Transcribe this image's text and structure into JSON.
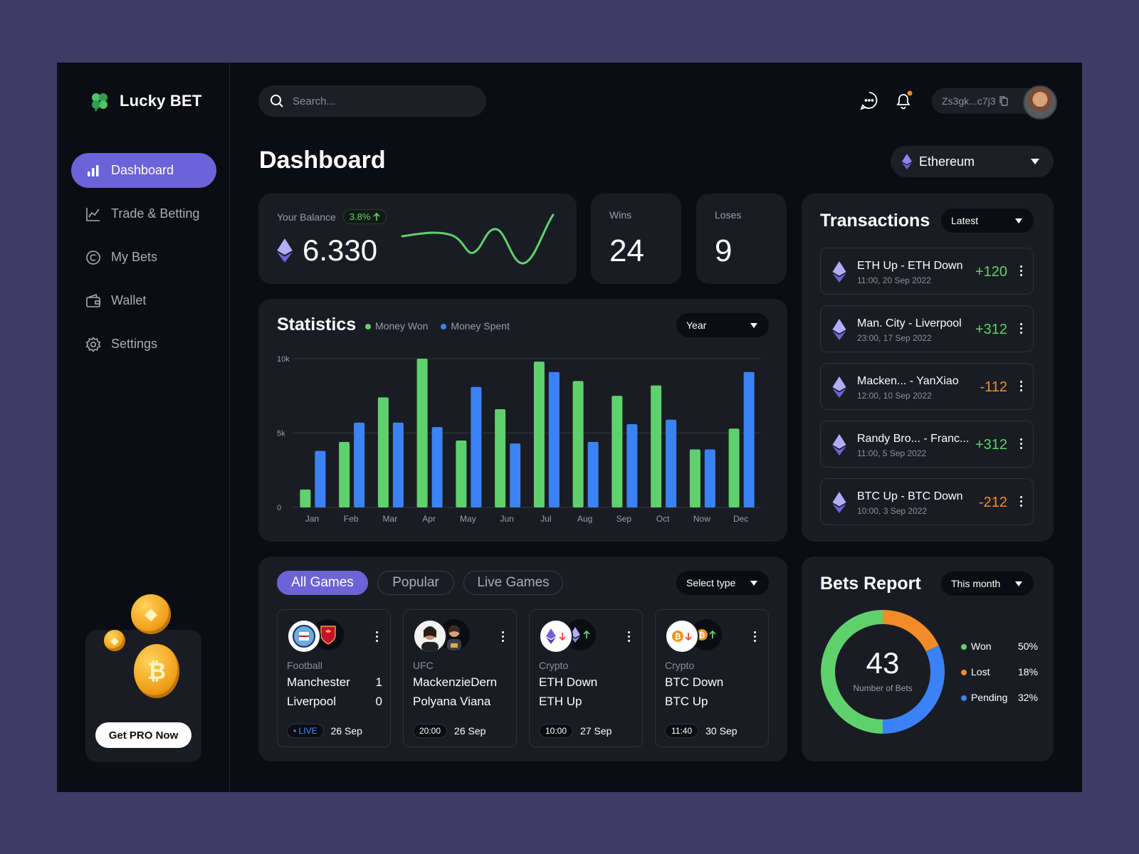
{
  "app": {
    "name": "Lucky BET"
  },
  "sidebar": {
    "items": [
      {
        "label": "Dashboard",
        "icon": "bar-chart-icon",
        "active": true
      },
      {
        "label": "Trade & Betting",
        "icon": "line-chart-icon",
        "active": false
      },
      {
        "label": "My Bets",
        "icon": "coin-icon",
        "active": false
      },
      {
        "label": "Wallet",
        "icon": "wallet-icon",
        "active": false
      },
      {
        "label": "Settings",
        "icon": "gear-icon",
        "active": false
      }
    ],
    "promo": {
      "button_label": "Get PRO Now"
    }
  },
  "header": {
    "search_placeholder": "Search...",
    "wallet_address": "Zs3gk...c7j3",
    "notification_dot": true
  },
  "page": {
    "title": "Dashboard",
    "currency": "Ethereum"
  },
  "balance": {
    "label": "Your Balance",
    "change": "3.8%",
    "value": "6.330"
  },
  "wins": {
    "label": "Wins",
    "value": "24"
  },
  "loses": {
    "label": "Loses",
    "value": "9"
  },
  "statistics": {
    "title": "Statistics",
    "period": "Year",
    "legend": {
      "won": "Money Won",
      "spent": "Money Spent"
    }
  },
  "chart_data": {
    "type": "bar",
    "categories": [
      "Jan",
      "Feb",
      "Mar",
      "Apr",
      "May",
      "Jun",
      "Jul",
      "Aug",
      "Sep",
      "Oct",
      "Now",
      "Dec"
    ],
    "series": [
      {
        "name": "Money Won",
        "color": "#5fd16c",
        "values": [
          1200,
          4400,
          7400,
          10000,
          4500,
          6600,
          9800,
          8500,
          7500,
          8200,
          3900,
          5300
        ]
      },
      {
        "name": "Money Spent",
        "color": "#3b82f6",
        "values": [
          3800,
          5700,
          5700,
          5400,
          8100,
          4300,
          9100,
          4400,
          5600,
          5900,
          3900,
          9100
        ]
      }
    ],
    "ytick_labels": [
      "0",
      "5k",
      "10k"
    ],
    "ylim": [
      0,
      10000
    ],
    "grid": true
  },
  "transactions": {
    "title": "Transactions",
    "filter": "Latest",
    "items": [
      {
        "title": "ETH Up - ETH Down",
        "time": "11:00, 20 Sep 2022",
        "amount": "+120",
        "positive": true
      },
      {
        "title": "Man. City - Liverpool",
        "time": "23:00, 17 Sep 2022",
        "amount": "+312",
        "positive": true
      },
      {
        "title": "Macken... -  YanXiao",
        "time": "12:00, 10 Sep 2022",
        "amount": "-112",
        "positive": false
      },
      {
        "title": "Randy Bro... - Franc...",
        "time": "11:00, 5 Sep 2022",
        "amount": "+312",
        "positive": true
      },
      {
        "title": "BTC Up - BTC Down",
        "time": "10:00, 3 Sep 2022",
        "amount": "-212",
        "positive": false
      }
    ]
  },
  "games": {
    "tabs": [
      "All Games",
      "Popular",
      "Live Games"
    ],
    "select_type": "Select type",
    "cards": [
      {
        "category": "Football",
        "line1": "Manchester",
        "score1": "1",
        "line2": "Liverpool",
        "score2": "0",
        "badge": "• LIVE",
        "date": "26 Sep"
      },
      {
        "category": "UFC",
        "line1": "MackenzieDern",
        "score1": "",
        "line2": "Polyana Viana",
        "score2": "",
        "badge": "20:00",
        "date": "26 Sep"
      },
      {
        "category": "Crypto",
        "line1": "ETH Down",
        "score1": "",
        "line2": "ETH Up",
        "score2": "",
        "badge": "10:00",
        "date": "27 Sep"
      },
      {
        "category": "Crypto",
        "line1": "BTC Down",
        "score1": "",
        "line2": "BTC Up",
        "score2": "",
        "badge": "11:40",
        "date": "30 Sep"
      }
    ]
  },
  "bets_report": {
    "title": "Bets Report",
    "period": "This month",
    "total": "43",
    "total_label": "Number of Bets",
    "segments": [
      {
        "label": "Won",
        "percent": "50%",
        "value": 50,
        "color": "#5fd16c"
      },
      {
        "label": "Lost",
        "percent": "18%",
        "value": 18,
        "color": "#f28c28"
      },
      {
        "label": "Pending",
        "percent": "32%",
        "value": 32,
        "color": "#3b82f6"
      }
    ]
  },
  "colors": {
    "accent": "#6c63d8",
    "positive": "#5fd16c",
    "negative": "#f28c28",
    "blue": "#3b82f6"
  }
}
